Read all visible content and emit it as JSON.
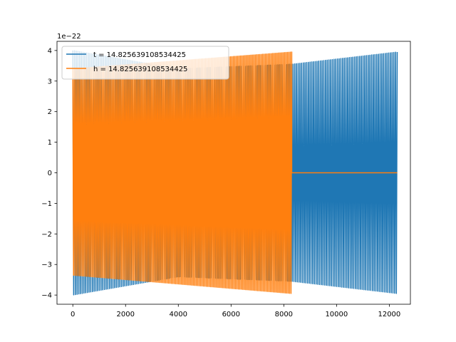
{
  "chart_data": {
    "type": "line",
    "title": "",
    "xlabel": "",
    "ylabel": "",
    "y_offset_label": "1e−22",
    "xlim": [
      -600,
      12800
    ],
    "ylim": [
      -4.3,
      4.3
    ],
    "x_ticks": [
      0,
      2000,
      4000,
      6000,
      8000,
      10000,
      12000
    ],
    "x_tick_labels": [
      "0",
      "2000",
      "4000",
      "6000",
      "8000",
      "10000",
      "12000"
    ],
    "y_ticks": [
      -4,
      -3,
      -2,
      -1,
      0,
      1,
      2,
      3,
      4
    ],
    "y_tick_labels": [
      "−4",
      "−3",
      "−2",
      "−1",
      "0",
      "1",
      "2",
      "3",
      "4"
    ],
    "grid": false,
    "legend_position": "upper-left",
    "series": [
      {
        "name": "t = 14.825639108534425",
        "color": "#1f77b4",
        "x_range": [
          0,
          12300
        ],
        "envelope_points": [
          [
            0,
            4.0
          ],
          [
            4000,
            3.4
          ],
          [
            8300,
            3.55
          ],
          [
            12300,
            3.95
          ]
        ],
        "trough_points": [
          [
            0,
            -4.0
          ],
          [
            4000,
            -3.4
          ],
          [
            8300,
            -3.55
          ],
          [
            12300,
            -3.95
          ]
        ],
        "cycles": 190
      },
      {
        "name": "h = 14.825639108534425",
        "color": "#ff7f0e",
        "x_range": [
          0,
          12300
        ],
        "oscillation_end": 8300,
        "envelope_points": [
          [
            0,
            3.4
          ],
          [
            8300,
            3.95
          ]
        ],
        "trough_points": [
          [
            0,
            -3.35
          ],
          [
            8300,
            -3.95
          ]
        ],
        "cycles": 150,
        "flat_value_after_end": 0
      }
    ]
  }
}
